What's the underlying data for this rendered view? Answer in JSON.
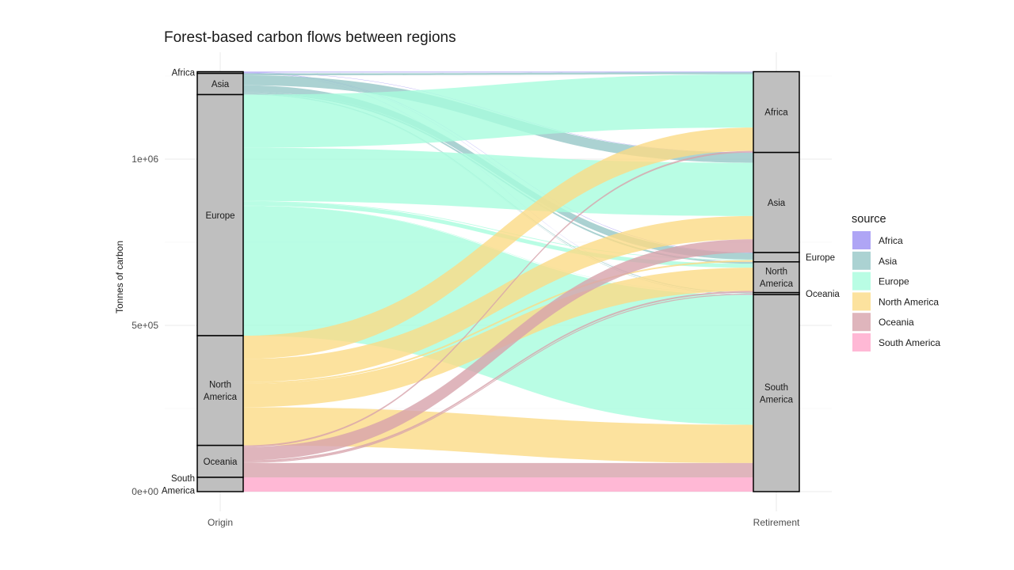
{
  "chart_data": {
    "type": "alluvial",
    "title": "Forest-based carbon flows between regions",
    "ylabel": "Tonnes of carbon",
    "xlabel": "",
    "ylim": [
      0,
      1260000
    ],
    "yticks": [
      {
        "value": 0,
        "label": "0e+00"
      },
      {
        "value": 500000,
        "label": "5e+05"
      },
      {
        "value": 1000000,
        "label": "1e+06"
      }
    ],
    "grid": true,
    "axes": [
      "Origin",
      "Retirement"
    ],
    "legend": {
      "title": "source",
      "position": "right"
    },
    "regions": [
      "Africa",
      "Asia",
      "Europe",
      "North America",
      "Oceania",
      "South America"
    ],
    "region_labels": [
      "Africa",
      "Asia",
      "Europe",
      "North\nAmerica",
      "Oceania",
      "South\nAmerica"
    ],
    "colors": {
      "Africa": "#9b8ff2",
      "Asia": "#96c7c7",
      "Europe": "#a8fcdd",
      "North America": "#fbdb86",
      "Oceania": "#d7a2ab",
      "South America": "#ffa6cb"
    },
    "flows": [
      {
        "source": "Africa",
        "target": "Africa",
        "value": 2000
      },
      {
        "source": "Africa",
        "target": "Asia",
        "value": 1000
      },
      {
        "source": "Africa",
        "target": "Europe",
        "value": 1000
      },
      {
        "source": "Africa",
        "target": "North America",
        "value": 500
      },
      {
        "source": "Africa",
        "target": "South America",
        "value": 500
      },
      {
        "source": "Asia",
        "target": "Africa",
        "value": 6000
      },
      {
        "source": "Asia",
        "target": "Asia",
        "value": 30000
      },
      {
        "source": "Asia",
        "target": "Europe",
        "value": 20000
      },
      {
        "source": "Asia",
        "target": "North America",
        "value": 5000
      },
      {
        "source": "Asia",
        "target": "Oceania",
        "value": 2000
      },
      {
        "source": "Asia",
        "target": "South America",
        "value": 1000
      },
      {
        "source": "Europe",
        "target": "Africa",
        "value": 160000
      },
      {
        "source": "Europe",
        "target": "Asia",
        "value": 160000
      },
      {
        "source": "Europe",
        "target": "Europe",
        "value": 2000
      },
      {
        "source": "Europe",
        "target": "North America",
        "value": 12000
      },
      {
        "source": "Europe",
        "target": "Oceania",
        "value": 1000
      },
      {
        "source": "Europe",
        "target": "South America",
        "value": 390000
      },
      {
        "source": "North America",
        "target": "Africa",
        "value": 70000
      },
      {
        "source": "North America",
        "target": "Asia",
        "value": 70000
      },
      {
        "source": "North America",
        "target": "Europe",
        "value": 5000
      },
      {
        "source": "North America",
        "target": "North America",
        "value": 70000
      },
      {
        "source": "North America",
        "target": "South America",
        "value": 115000
      },
      {
        "source": "Oceania",
        "target": "Africa",
        "value": 5000
      },
      {
        "source": "Oceania",
        "target": "Asia",
        "value": 40000
      },
      {
        "source": "Oceania",
        "target": "North America",
        "value": 5000
      },
      {
        "source": "Oceania",
        "target": "Oceania",
        "value": 3000
      },
      {
        "source": "Oceania",
        "target": "South America",
        "value": 43000
      },
      {
        "source": "South America",
        "target": "South America",
        "value": 43000
      }
    ]
  }
}
